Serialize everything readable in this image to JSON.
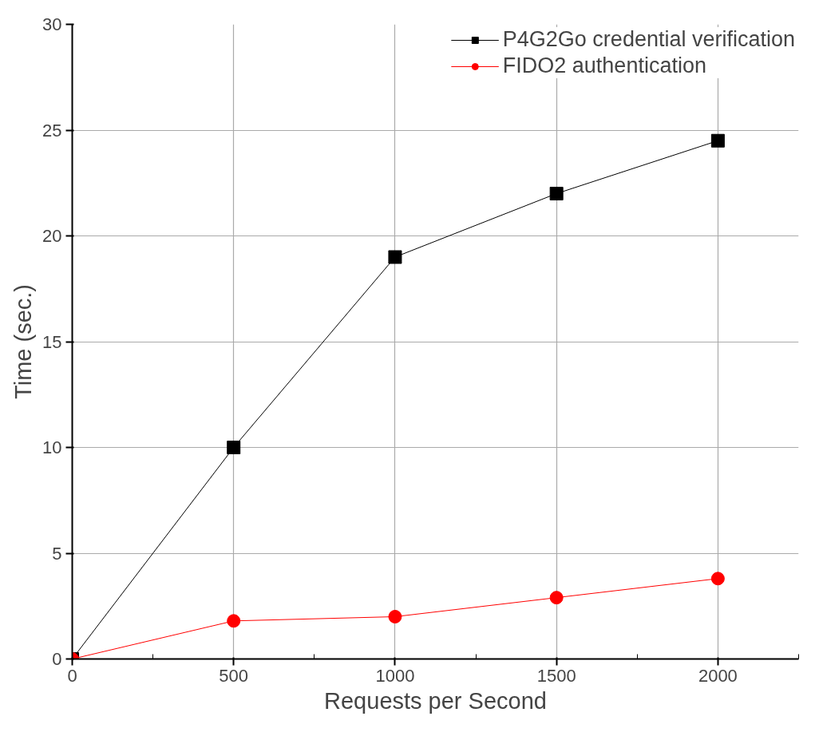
{
  "chart_data": {
    "type": "line",
    "xlabel": "Requests per Second",
    "ylabel": "Time (sec.)",
    "x": [
      0,
      500,
      1000,
      1500,
      2000
    ],
    "series": [
      {
        "name": "P4G2Go credential verification",
        "color": "#000000",
        "marker": "square",
        "values": [
          0,
          10,
          19,
          22,
          24.5
        ]
      },
      {
        "name": "FIDO2 authentication",
        "color": "#ff0000",
        "marker": "circle",
        "values": [
          0,
          1.8,
          2.0,
          2.9,
          3.8
        ]
      }
    ],
    "xlim": [
      0,
      2250
    ],
    "ylim": [
      0,
      30
    ],
    "xticks": [
      0,
      500,
      1000,
      1500,
      2000
    ],
    "yticks": [
      0,
      5,
      10,
      15,
      20,
      25,
      30
    ],
    "grid": true,
    "legend": "top right"
  }
}
